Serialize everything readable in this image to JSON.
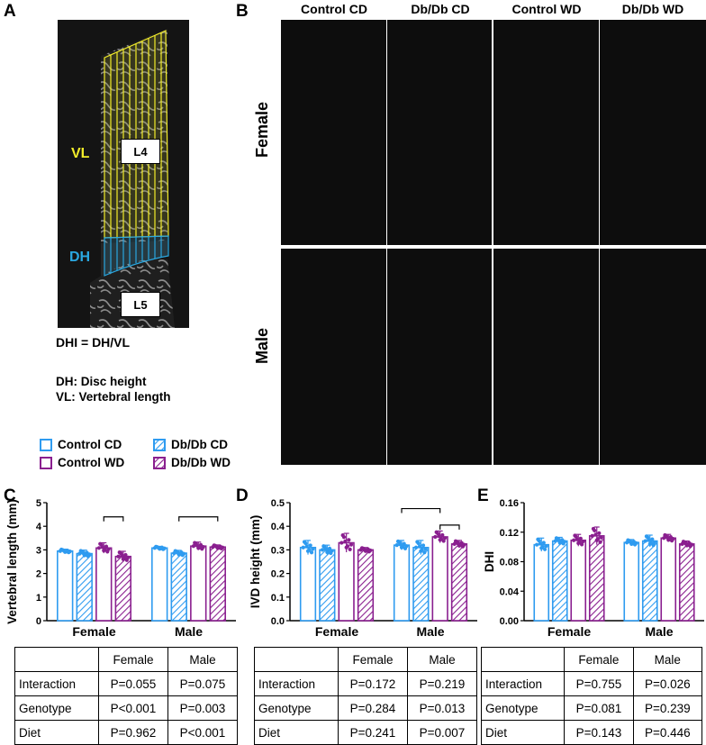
{
  "panel_letters": {
    "a": "A",
    "b": "B",
    "c": "C",
    "d": "D",
    "e": "E"
  },
  "panel_a": {
    "vl_label": "VL",
    "dh_label": "DH",
    "l4_label": "L4",
    "l5_label": "L5",
    "formula": "DHI = DH/VL",
    "def_dh": "DH: Disc height",
    "def_vl": "VL: Vertebral length",
    "colors": {
      "vl": "#f2ec2a",
      "dh": "#2aa7e0"
    }
  },
  "panel_b": {
    "columns": [
      "Control CD",
      "Db/Db CD",
      "Control WD",
      "Db/Db WD"
    ],
    "rows": [
      "Female",
      "Male"
    ]
  },
  "legend": {
    "control_cd": "Control CD",
    "dbdb_cd": "Db/Db CD",
    "control_wd": "Control WD",
    "dbdb_wd": "Db/Db WD"
  },
  "colors": {
    "cd": "#2e9bf0",
    "wd": "#8a1f8f"
  },
  "chart_data": [
    {
      "type": "bar",
      "panel": "C",
      "ylabel": "Vertebral length (mm)",
      "ylim": [
        0,
        5
      ],
      "yticks": [
        "0",
        "1",
        "2",
        "3",
        "4",
        "5"
      ],
      "groups": [
        "Female",
        "Male"
      ],
      "series": [
        {
          "name": "Control CD",
          "values": [
            2.95,
            3.08
          ],
          "err": [
            0.08,
            0.07
          ]
        },
        {
          "name": "Db/Db CD",
          "values": [
            2.84,
            2.86
          ],
          "err": [
            0.15,
            0.12
          ]
        },
        {
          "name": "Control WD",
          "values": [
            3.08,
            3.16
          ],
          "err": [
            0.22,
            0.17
          ]
        },
        {
          "name": "Db/Db WD",
          "values": [
            2.72,
            3.12
          ],
          "err": [
            0.22,
            0.09
          ]
        }
      ]
    },
    {
      "type": "bar",
      "panel": "D",
      "ylabel": "IVD height (mm)",
      "ylim": [
        0,
        0.5
      ],
      "yticks": [
        "0.0",
        "0.1",
        "0.2",
        "0.3",
        "0.4",
        "0.5"
      ],
      "groups": [
        "Female",
        "Male"
      ],
      "series": [
        {
          "name": "Control CD",
          "values": [
            0.31,
            0.32
          ],
          "err": [
            0.03,
            0.02
          ]
        },
        {
          "name": "Db/Db CD",
          "values": [
            0.3,
            0.31
          ],
          "err": [
            0.02,
            0.03
          ]
        },
        {
          "name": "Control WD",
          "values": [
            0.33,
            0.355
          ],
          "err": [
            0.04,
            0.025
          ]
        },
        {
          "name": "Db/Db WD",
          "values": [
            0.3,
            0.325
          ],
          "err": [
            0.01,
            0.015
          ]
        }
      ]
    },
    {
      "type": "bar",
      "panel": "E",
      "ylabel": "DHI",
      "ylim": [
        0,
        0.16
      ],
      "yticks": [
        "0.00",
        "0.04",
        "0.08",
        "0.12",
        "0.16"
      ],
      "groups": [
        "Female",
        "Male"
      ],
      "series": [
        {
          "name": "Control CD",
          "values": [
            0.103,
            0.106
          ],
          "err": [
            0.009,
            0.004
          ]
        },
        {
          "name": "Db/Db CD",
          "values": [
            0.108,
            0.108
          ],
          "err": [
            0.005,
            0.008
          ]
        },
        {
          "name": "Control WD",
          "values": [
            0.109,
            0.112
          ],
          "err": [
            0.008,
            0.005
          ]
        },
        {
          "name": "Db/Db WD",
          "values": [
            0.115,
            0.104
          ],
          "err": [
            0.012,
            0.004
          ]
        }
      ]
    }
  ],
  "tables": [
    {
      "header": [
        "",
        "Female",
        "Male"
      ],
      "rows": [
        [
          "Interaction",
          "P=0.055",
          "P=0.075"
        ],
        [
          "Genotype",
          "P<0.001",
          "P=0.003"
        ],
        [
          "Diet",
          "P=0.962",
          "P<0.001"
        ]
      ]
    },
    {
      "header": [
        "",
        "Female",
        "Male"
      ],
      "rows": [
        [
          "Interaction",
          "P=0.172",
          "P=0.219"
        ],
        [
          "Genotype",
          "P=0.284",
          "P=0.013"
        ],
        [
          "Diet",
          "P=0.241",
          "P=0.007"
        ]
      ]
    },
    {
      "header": [
        "",
        "Female",
        "Male"
      ],
      "rows": [
        [
          "Interaction",
          "P=0.755",
          "P=0.026"
        ],
        [
          "Genotype",
          "P=0.081",
          "P=0.239"
        ],
        [
          "Diet",
          "P=0.143",
          "P=0.446"
        ]
      ]
    }
  ]
}
